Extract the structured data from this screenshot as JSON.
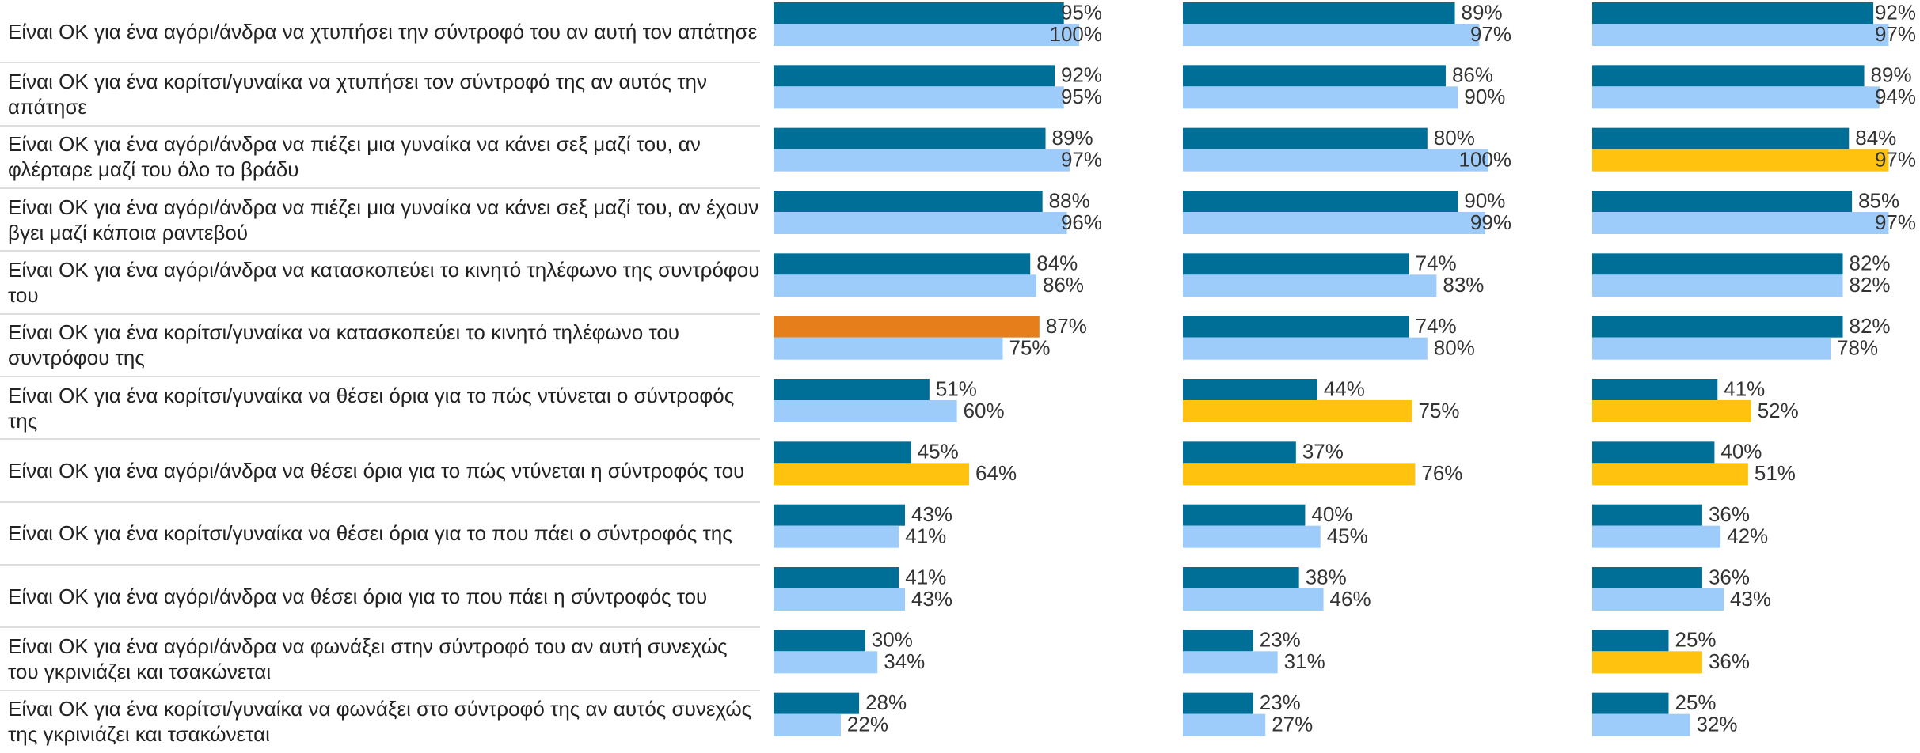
{
  "chart_data": [
    {
      "type": "bar",
      "categories": [
        "Είναι ΟΚ για ένα αγόρι/άνδρα να χτυπήσει την σύντροφό του αν αυτή τον απάτησε",
        "Είναι ΟΚ για ένα κορίτσι/γυναίκα να χτυπήσει τον σύντροφό της αν αυτός την απάτησε",
        "Είναι ΟΚ για ένα αγόρι/άνδρα να πιέζει μια γυναίκα να κάνει σεξ μαζί του, αν φλέρταρε μαζί του όλο το βράδυ",
        "Είναι ΟΚ για ένα αγόρι/άνδρα να πιέζει μια γυναίκα να κάνει σεξ μαζί του, αν έχουν βγει μαζί κάποια ραντεβού",
        "Είναι ΟΚ για ένα αγόρι/άνδρα να κατασκοπεύει το κινητό τηλέφωνο της συντρόφου του",
        "Είναι ΟΚ για ένα κορίτσι/γυναίκα να κατασκοπεύει το κινητό τηλέφωνο του συντρόφου της",
        "Είναι ΟΚ για ένα κορίτσι/γυναίκα να θέσει όρια για το πώς ντύνεται ο σύντροφός της",
        "Είναι ΟΚ για ένα αγόρι/άνδρα να θέσει όρια για το πώς ντύνεται η σύντροφός του",
        "Είναι ΟΚ για ένα κορίτσι/γυναίκα να θέσει όρια για το που πάει ο σύντροφός της",
        "Είναι ΟΚ για ένα αγόρι/άνδρα να θέσει όρια για το που πάει η σύντροφός του",
        "Είναι ΟΚ για ένα αγόρι/άνδρα να φωνάξει στην σύντροφό του αν αυτή συνεχώς του γκρινιάζει και τσακώνεται",
        "Είναι ΟΚ για ένα κορίτσι/γυναίκα να φωνάξει στο σύντροφό της αν αυτός συνεχώς της γκρινιάζει και τσακώνεται"
      ],
      "series": [
        {
          "values": [
            95,
            92,
            89,
            88,
            84,
            87,
            51,
            45,
            43,
            41,
            30,
            28
          ],
          "value_labels": [
            "95%",
            "92%",
            "89%",
            "88%",
            "84%",
            "87%",
            "51%",
            "45%",
            "43%",
            "41%",
            "30%",
            "28%"
          ],
          "colors": [
            "#006f98",
            "#006f98",
            "#006f98",
            "#006f98",
            "#006f98",
            "#e67e1c",
            "#006f98",
            "#006f98",
            "#006f98",
            "#006f98",
            "#006f98",
            "#006f98"
          ]
        },
        {
          "values": [
            100,
            95,
            97,
            96,
            86,
            75,
            60,
            64,
            41,
            43,
            34,
            22
          ],
          "value_labels": [
            "100%",
            "95%",
            "97%",
            "96%",
            "86%",
            "75%",
            "60%",
            "64%",
            "41%",
            "43%",
            "34%",
            "22%"
          ],
          "colors": [
            "#9dcbfa",
            "#9dcbfa",
            "#9dcbfa",
            "#9dcbfa",
            "#9dcbfa",
            "#9dcbfa",
            "#9dcbfa",
            "#ffc20f",
            "#9dcbfa",
            "#9dcbfa",
            "#9dcbfa",
            "#9dcbfa"
          ]
        }
      ]
    },
    {
      "type": "bar",
      "series": [
        {
          "values": [
            89,
            86,
            80,
            90,
            74,
            74,
            44,
            37,
            40,
            38,
            23,
            23
          ],
          "value_labels": [
            "89%",
            "86%",
            "80%",
            "90%",
            "74%",
            "74%",
            "44%",
            "37%",
            "40%",
            "38%",
            "23%",
            "23%"
          ],
          "colors": [
            "#006f98",
            "#006f98",
            "#006f98",
            "#006f98",
            "#006f98",
            "#006f98",
            "#006f98",
            "#006f98",
            "#006f98",
            "#006f98",
            "#006f98",
            "#006f98"
          ]
        },
        {
          "values": [
            97,
            90,
            100,
            99,
            83,
            80,
            75,
            76,
            45,
            46,
            31,
            27
          ],
          "value_labels": [
            "97%",
            "90%",
            "100%",
            "99%",
            "83%",
            "80%",
            "75%",
            "76%",
            "45%",
            "46%",
            "31%",
            "27%"
          ],
          "colors": [
            "#9dcbfa",
            "#9dcbfa",
            "#9dcbfa",
            "#9dcbfa",
            "#9dcbfa",
            "#9dcbfa",
            "#ffc20f",
            "#ffc20f",
            "#9dcbfa",
            "#9dcbfa",
            "#9dcbfa",
            "#9dcbfa"
          ]
        }
      ]
    },
    {
      "type": "bar",
      "series": [
        {
          "values": [
            92,
            89,
            84,
            85,
            82,
            82,
            41,
            40,
            36,
            36,
            25,
            25
          ],
          "value_labels": [
            "92%",
            "89%",
            "84%",
            "85%",
            "82%",
            "82%",
            "41%",
            "40%",
            "36%",
            "36%",
            "25%",
            "25%"
          ],
          "colors": [
            "#006f98",
            "#006f98",
            "#006f98",
            "#006f98",
            "#006f98",
            "#006f98",
            "#006f98",
            "#006f98",
            "#006f98",
            "#006f98",
            "#006f98",
            "#006f98"
          ]
        },
        {
          "values": [
            97,
            94,
            97,
            97,
            82,
            78,
            52,
            51,
            42,
            43,
            36,
            32
          ],
          "value_labels": [
            "97%",
            "94%",
            "97%",
            "97%",
            "82%",
            "78%",
            "52%",
            "51%",
            "42%",
            "43%",
            "36%",
            "32%"
          ],
          "colors": [
            "#9dcbfa",
            "#9dcbfa",
            "#ffc20f",
            "#9dcbfa",
            "#9dcbfa",
            "#9dcbfa",
            "#ffc20f",
            "#ffc20f",
            "#9dcbfa",
            "#9dcbfa",
            "#ffc20f",
            "#9dcbfa"
          ]
        }
      ]
    }
  ]
}
